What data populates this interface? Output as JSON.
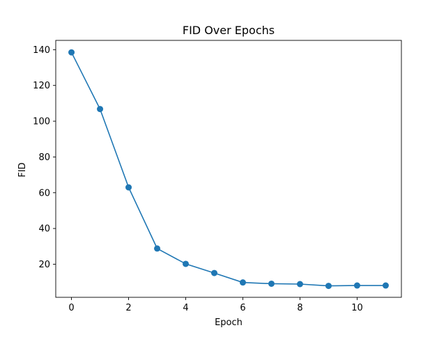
{
  "chart_data": {
    "type": "line",
    "title": "FID Over Epochs",
    "xlabel": "Epoch",
    "ylabel": "FID",
    "xlim": [
      -0.55,
      11.55
    ],
    "ylim": [
      1.5,
      145.2
    ],
    "xticks": [
      0,
      2,
      4,
      6,
      8,
      10
    ],
    "yticks": [
      20,
      40,
      60,
      80,
      100,
      120,
      140
    ],
    "grid": false,
    "legend": "none",
    "series": [
      {
        "color": "#1f77b4",
        "marker": "circle",
        "x": [
          0,
          1,
          2,
          3,
          4,
          5,
          6,
          7,
          8,
          9,
          10,
          11
        ],
        "y": [
          138.5,
          106.8,
          63.0,
          28.8,
          20.2,
          15.1,
          9.8,
          9.1,
          8.9,
          7.9,
          8.1,
          8.1
        ]
      }
    ]
  }
}
